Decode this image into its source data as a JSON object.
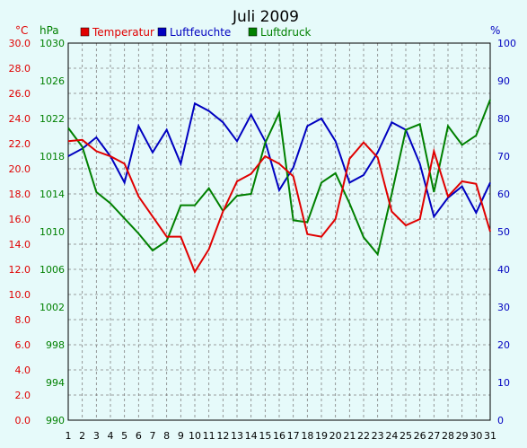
{
  "chart_data": {
    "type": "line",
    "title": "Juli 2009",
    "x": [
      1,
      2,
      3,
      4,
      5,
      6,
      7,
      8,
      9,
      10,
      11,
      12,
      13,
      14,
      15,
      16,
      17,
      18,
      19,
      20,
      21,
      22,
      23,
      24,
      25,
      26,
      27,
      28,
      29,
      30,
      31
    ],
    "axes": {
      "temperature": {
        "unit": "°C",
        "range": [
          0,
          30
        ],
        "ticks": [
          "0.0",
          "2.0",
          "4.0",
          "6.0",
          "8.0",
          "10.0",
          "12.0",
          "14.0",
          "16.0",
          "18.0",
          "20.0",
          "22.0",
          "24.0",
          "26.0",
          "28.0",
          "30.0"
        ],
        "color": "#e00000"
      },
      "pressure": {
        "unit": "hPa",
        "range": [
          990,
          1030
        ],
        "ticks": [
          "990",
          "994",
          "998",
          "1002",
          "1006",
          "1010",
          "1014",
          "1018",
          "1022",
          "1026",
          "1030"
        ],
        "color": "#008000"
      },
      "humidity": {
        "unit": "%",
        "range": [
          0,
          100
        ],
        "ticks": [
          "0",
          "10",
          "20",
          "30",
          "40",
          "50",
          "60",
          "70",
          "80",
          "90",
          "100"
        ],
        "color": "#0000c0"
      }
    },
    "grid": true,
    "legend_position": "top-left",
    "series": [
      {
        "name": "Temperatur",
        "axis": "temperature",
        "color": "#e00000",
        "values": [
          22.2,
          22.3,
          21.4,
          21.0,
          20.4,
          17.8,
          16.2,
          14.6,
          14.6,
          11.8,
          13.6,
          16.6,
          19.0,
          19.6,
          21.0,
          20.4,
          19.4,
          14.8,
          14.6,
          16.0,
          20.8,
          22.1,
          20.9,
          16.6,
          15.5,
          16.0,
          21.4,
          17.8,
          19.0,
          18.8,
          15.0
        ]
      },
      {
        "name": "Luftfeuchte",
        "axis": "humidity",
        "color": "#0000c0",
        "values": [
          70,
          72,
          75,
          70,
          63,
          78,
          71,
          77,
          68,
          84,
          82,
          79,
          74,
          81,
          74,
          61,
          67,
          78,
          80,
          74,
          63,
          65,
          71,
          79,
          77,
          68,
          54,
          59,
          62,
          55,
          63
        ]
      },
      {
        "name": "Luftdruck",
        "axis": "pressure",
        "color": "#008000",
        "values": [
          1021.0,
          1019.0,
          1014.2,
          1013.0,
          1011.4,
          1009.8,
          1008.0,
          1009.0,
          1012.8,
          1012.8,
          1014.6,
          1012.2,
          1013.8,
          1014.0,
          1019.4,
          1022.6,
          1011.2,
          1011.0,
          1015.2,
          1016.2,
          1013.0,
          1009.4,
          1007.6,
          1014.0,
          1020.8,
          1021.4,
          1014.2,
          1021.2,
          1019.2,
          1020.2,
          1024.0
        ]
      }
    ]
  }
}
